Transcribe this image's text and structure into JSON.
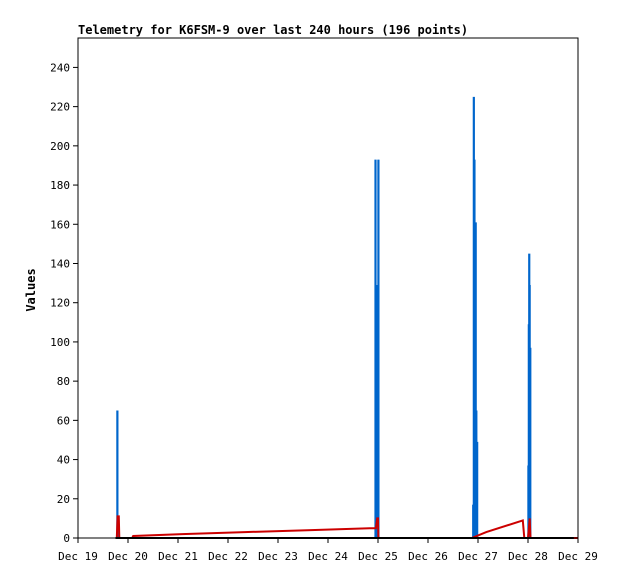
{
  "chart_data": {
    "type": "line",
    "title": "Telemetry for K6FSM-9 over last 240 hours (196 points)",
    "ylabel": "Values",
    "xlabel": "",
    "ylim": [
      0,
      255
    ],
    "xlim": [
      0,
      240
    ],
    "x_ticks": [
      {
        "x": 0,
        "label": "Dec 19"
      },
      {
        "x": 24,
        "label": "Dec 20"
      },
      {
        "x": 48,
        "label": "Dec 21"
      },
      {
        "x": 72,
        "label": "Dec 22"
      },
      {
        "x": 96,
        "label": "Dec 23"
      },
      {
        "x": 120,
        "label": "Dec 24"
      },
      {
        "x": 144,
        "label": "Dec 25"
      },
      {
        "x": 168,
        "label": "Dec 26"
      },
      {
        "x": 192,
        "label": "Dec 27"
      },
      {
        "x": 216,
        "label": "Dec 28"
      },
      {
        "x": 240,
        "label": "Dec 29"
      }
    ],
    "y_ticks": [
      0,
      20,
      40,
      60,
      80,
      100,
      120,
      140,
      160,
      180,
      200,
      220,
      240
    ],
    "grid": false,
    "legend": "none",
    "series": [
      {
        "color": "#0066cc",
        "style": "spikes",
        "points": [
          [
            18.9,
            65
          ],
          [
            19.0,
            0
          ],
          [
            142.7,
            0
          ],
          [
            142.8,
            193
          ],
          [
            142.9,
            0
          ],
          [
            143.2,
            17
          ],
          [
            143.6,
            81
          ],
          [
            143.8,
            129
          ],
          [
            144.0,
            0
          ],
          [
            144.2,
            193
          ],
          [
            144.3,
            0
          ],
          [
            189.6,
            0
          ],
          [
            189.7,
            17
          ],
          [
            189.8,
            0
          ],
          [
            190.0,
            225
          ],
          [
            190.2,
            0
          ],
          [
            190.3,
            193
          ],
          [
            190.4,
            0
          ],
          [
            190.5,
            145
          ],
          [
            190.7,
            0
          ],
          [
            190.9,
            161
          ],
          [
            191.0,
            0
          ],
          [
            191.2,
            65
          ],
          [
            191.4,
            0
          ],
          [
            191.6,
            49
          ],
          [
            191.7,
            0
          ],
          [
            216.1,
            0
          ],
          [
            216.2,
            37
          ],
          [
            216.4,
            109
          ],
          [
            216.6,
            145
          ],
          [
            216.8,
            129
          ],
          [
            216.9,
            0
          ],
          [
            217.1,
            97
          ],
          [
            217.3,
            0
          ]
        ]
      },
      {
        "color": "#cc0000",
        "style": "line",
        "points": [
          [
            18.6,
            0
          ],
          [
            19.0,
            11
          ],
          [
            19.6,
            11
          ],
          [
            19.8,
            0
          ],
          [
            26.0,
            0
          ],
          [
            26.5,
            1
          ],
          [
            50.0,
            2
          ],
          [
            80.0,
            3
          ],
          [
            110.0,
            4
          ],
          [
            140.0,
            5
          ],
          [
            143.0,
            5
          ],
          [
            143.6,
            10
          ],
          [
            144.0,
            10
          ],
          [
            144.2,
            0
          ],
          [
            189.0,
            0
          ],
          [
            196.0,
            3
          ],
          [
            213.5,
            9
          ],
          [
            214.2,
            0
          ],
          [
            216.0,
            0
          ],
          [
            216.8,
            10
          ],
          [
            217.2,
            0
          ],
          [
            240,
            0
          ]
        ]
      },
      {
        "color": "#000000",
        "style": "line",
        "points": [
          [
            18,
            0
          ],
          [
            238,
            0
          ]
        ]
      }
    ]
  }
}
